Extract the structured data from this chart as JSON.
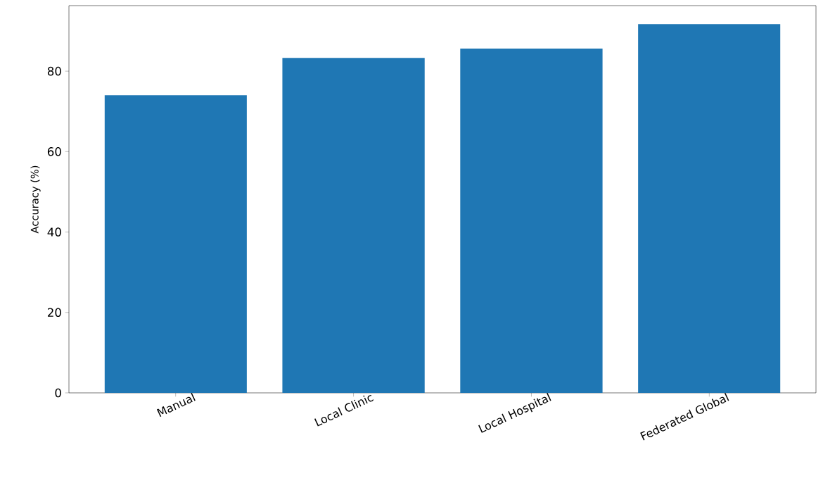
{
  "chart_data": {
    "type": "bar",
    "ylabel": "Accuracy (%)",
    "categories": [
      "Manual",
      "Local Clinic",
      "Local Hospital",
      "Federated Global"
    ],
    "values": [
      74,
      83.3,
      85.6,
      91.7
    ],
    "color": "#1f77b4",
    "ylim": [
      0,
      96.3
    ],
    "yticks": [
      0,
      20,
      40,
      60,
      80
    ],
    "grid": false
  }
}
